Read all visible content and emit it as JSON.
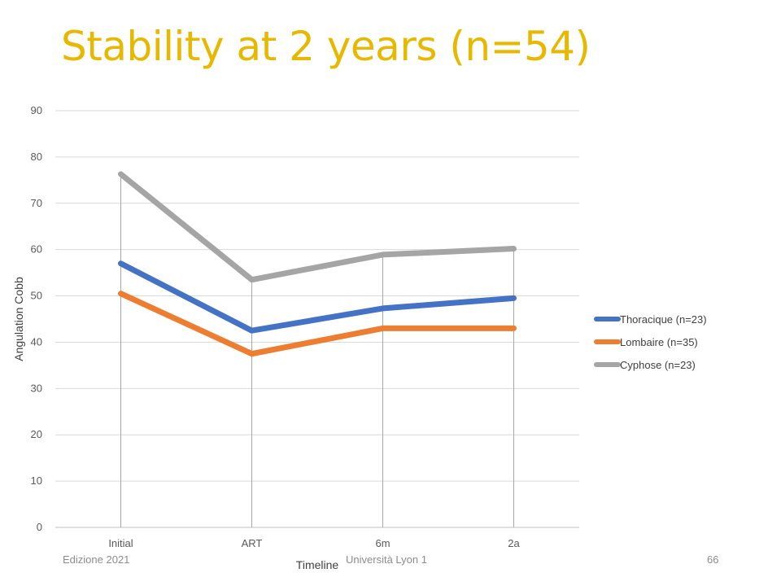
{
  "slide": {
    "title": "Stability at 2 years (n=54)",
    "title_color": "#E6B800",
    "footer_left": "Edizione 2021",
    "footer_center": "Università Lyon 1",
    "page_number": "66"
  },
  "chart_data": {
    "type": "line",
    "title": "",
    "xlabel": "Timeline",
    "ylabel": "Angulation Cobb",
    "categories": [
      "Initial",
      "ART",
      "6m",
      "2a"
    ],
    "ylim": [
      0,
      90
    ],
    "yticks": [
      0,
      10,
      20,
      30,
      40,
      50,
      60,
      70,
      80,
      90
    ],
    "grid": true,
    "legend_position": "right",
    "series": [
      {
        "name": "Thoracique (n=23)",
        "color": "#4472C4",
        "values": [
          57,
          42.5,
          47.3,
          49.5
        ]
      },
      {
        "name": "Lombaire (n=35)",
        "color": "#ED7D31",
        "values": [
          50.5,
          37.5,
          43,
          43
        ]
      },
      {
        "name": "Cyphose (n=23)",
        "color": "#A5A5A5",
        "values": [
          76.3,
          53.5,
          58.9,
          60.2
        ]
      }
    ]
  }
}
